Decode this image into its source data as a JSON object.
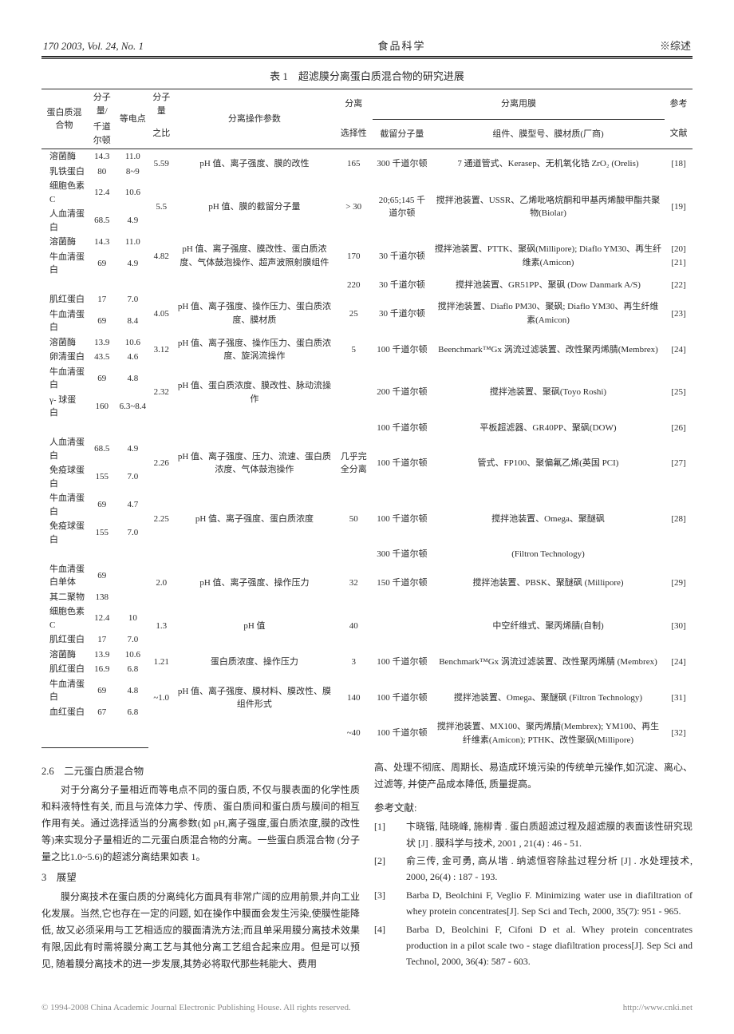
{
  "header": {
    "left": "170  2003, Vol. 24, No. 1",
    "center": "食品科学",
    "right": "※综述"
  },
  "table": {
    "caption": "表 1　超滤膜分离蛋白质混合物的研究进展",
    "head": {
      "c1": "蛋白质混合物",
      "c2_t": "分子量/",
      "c2_b": "千道尔顿",
      "c3": "等电点",
      "c4_t": "分子量",
      "c4_b": "之比",
      "c5": "分离操作参数",
      "c6_t": "分离",
      "c6_b": "选择性",
      "c7_group": "分离用膜",
      "c7a": "截留分子量",
      "c7b": "组件、膜型号、膜材质(厂商)",
      "c8_t": "参考",
      "c8_b": "文献"
    },
    "rows": [
      {
        "n": [
          "溶菌酶",
          "乳铁蛋白"
        ],
        "mw": [
          "14.3",
          "80"
        ],
        "pi": [
          "11.0",
          "8~9"
        ],
        "r": "5.59",
        "p": "pH 值、离子强度、膜的改性",
        "s": "165",
        "cut": "300 千道尔顿",
        "m": "7 通道管式、Kerasep、无机氧化锆 ZrO₂ (Orelis)",
        "ref": "[18]"
      },
      {
        "n": [
          "细胞色素 C",
          "人血清蛋白"
        ],
        "mw": [
          "12.4",
          "68.5"
        ],
        "pi": [
          "10.6",
          "4.9"
        ],
        "r": "5.5",
        "p": "pH 值、膜的截留分子量",
        "s": "> 30",
        "cut": "20;65;145 千道尔顿",
        "m": "搅拌池装置、USSR、乙烯吡咯烷酮和甲基丙烯酸甲酯共聚物(Biolar)",
        "ref": "[19]"
      },
      {
        "n": [
          "溶菌酶",
          "牛血清蛋白"
        ],
        "mw": [
          "14.3",
          "69"
        ],
        "pi": [
          "11.0",
          "4.9"
        ],
        "r": "4.82",
        "p": "pH 值、离子强度、膜改性、蛋白质浓度、气体鼓泡操作、超声波照射膜组件",
        "s": "170",
        "cut": "30 千道尔顿",
        "m": "搅拌池装置、PTTK、聚砜(Millipore); Diaflo YM30、再生纤维素(Amicon)",
        "ref": "[20] [21]"
      },
      {
        "n": [
          "",
          ""
        ],
        "mw": [
          "",
          ""
        ],
        "pi": [
          "",
          ""
        ],
        "r": "",
        "p": "",
        "s": "220",
        "cut": "30 千道尔顿",
        "m": "搅拌池装置、GR51PP、聚砜 (Dow Danmark A/S)",
        "ref": "[22]"
      },
      {
        "n": [
          "肌红蛋白",
          "牛血清蛋白"
        ],
        "mw": [
          "17",
          "69"
        ],
        "pi": [
          "7.0",
          "8.4"
        ],
        "r": "4.05",
        "p": "pH 值、离子强度、操作压力、蛋白质浓度、膜材质",
        "s": "25",
        "cut": "30 千道尔顿",
        "m": "搅拌池装置、Diaflo PM30、聚砜; Diaflo YM30、再生纤维素(Amicon)",
        "ref": "[23]"
      },
      {
        "n": [
          "溶菌酶",
          "卵清蛋白"
        ],
        "mw": [
          "13.9",
          "43.5"
        ],
        "pi": [
          "10.6",
          "4.6"
        ],
        "r": "3.12",
        "p": "pH 值、离子强度、操作压力、蛋白质浓度、旋涡流操作",
        "s": "5",
        "cut": "100 千道尔顿",
        "m": "Beenchmark™Gx 涡流过滤装置、改性聚丙烯腈(Membrex)",
        "ref": "[24]"
      },
      {
        "n": [
          "牛血清蛋白",
          "γ- 球蛋白"
        ],
        "mw": [
          "69",
          "160"
        ],
        "pi": [
          "4.8",
          "6.3~8.4"
        ],
        "r": "2.32",
        "p": "pH 值、蛋白质浓度、膜改性、脉动流操作",
        "s": "",
        "cut": "200 千道尔顿",
        "m": "搅拌池装置、聚砜(Toyo Roshi)",
        "ref": "[25]"
      },
      {
        "n": [
          "",
          ""
        ],
        "mw": [
          "",
          ""
        ],
        "pi": [
          "",
          ""
        ],
        "r": "",
        "p": "",
        "s": "",
        "cut": "100 千道尔顿",
        "m": "平板超滤器、GR40PP、聚砜(DOW)",
        "ref": "[26]"
      },
      {
        "n": [
          "人血清蛋白",
          "免疫球蛋白"
        ],
        "mw": [
          "68.5",
          "155"
        ],
        "pi": [
          "4.9",
          "7.0"
        ],
        "r": "2.26",
        "p": "pH 值、离子强度、压力、流速、蛋白质浓度、气体鼓泡操作",
        "s": "几乎完全分离",
        "cut": "100 千道尔顿",
        "m": "管式、FP100、聚偏氟乙烯(英国 PCI)",
        "ref": "[27]"
      },
      {
        "n": [
          "牛血清蛋白",
          "免疫球蛋白"
        ],
        "mw": [
          "69",
          "155"
        ],
        "pi": [
          "4.7",
          "7.0"
        ],
        "r": "2.25",
        "p": "pH 值、离子强度、蛋白质浓度",
        "s": "50",
        "cut": "100 千道尔顿",
        "m": "搅拌池装置、Omega、聚醚砜",
        "ref": "[28]"
      },
      {
        "n": [
          "",
          ""
        ],
        "mw": [
          "",
          ""
        ],
        "pi": [
          "",
          ""
        ],
        "r": "",
        "p": "",
        "s": "",
        "cut": "300 千道尔顿",
        "m": "(Filtron Technology)",
        "ref": ""
      },
      {
        "n": [
          "牛血清蛋白单体",
          "其二聚物"
        ],
        "mw": [
          "69",
          "138"
        ],
        "pi": [
          "",
          ""
        ],
        "r": "2.0",
        "p": "pH 值、离子强度、操作压力",
        "s": "32",
        "cut": "150 千道尔顿",
        "m": "搅拌池装置、PBSK、聚醚砜 (Millipore)",
        "ref": "[29]"
      },
      {
        "n": [
          "细胞色素 C",
          "肌红蛋白"
        ],
        "mw": [
          "12.4",
          "17"
        ],
        "pi": [
          "10",
          "7.0"
        ],
        "r": "1.3",
        "p": "pH 值",
        "s": "40",
        "cut": "",
        "m": "中空纤维式、聚丙烯腈(自制)",
        "ref": "[30]"
      },
      {
        "n": [
          "溶菌酶",
          "肌红蛋白"
        ],
        "mw": [
          "13.9",
          "16.9"
        ],
        "pi": [
          "10.6",
          "6.8"
        ],
        "r": "1.21",
        "p": "蛋白质浓度、操作压力",
        "s": "3",
        "cut": "100 千道尔顿",
        "m": "Benchmark™Gx 涡流过滤装置、改性聚丙烯腈 (Membrex)",
        "ref": "[24]"
      },
      {
        "n": [
          "牛血清蛋白",
          "血红蛋白"
        ],
        "mw": [
          "69",
          "67"
        ],
        "pi": [
          "4.8",
          "6.8"
        ],
        "r": "~1.0",
        "p": "pH 值、离子强度、膜材料、膜改性、膜组件形式",
        "s": "140",
        "cut": "100 千道尔顿",
        "m": "搅拌池装置、Omega、聚醚砜 (Filtron Technology)",
        "ref": "[31]"
      },
      {
        "n": [
          "",
          ""
        ],
        "mw": [
          "",
          ""
        ],
        "pi": [
          "",
          ""
        ],
        "r": "",
        "p": "",
        "s": "~40",
        "cut": "100 千道尔顿",
        "m": "搅拌池装置、MX100、聚丙烯腈(Membrex); YM100、再生纤维素(Amicon); PTHK、改性聚砜(Millipore)",
        "ref": "[32]"
      }
    ]
  },
  "sections": {
    "s26_title": "2.6　二元蛋白质混合物",
    "s26_p1": "对于分离分子量相近而等电点不同的蛋白质, 不仅与膜表面的化学性质和料液特性有关, 而且与流体力学、传质、蛋白质间和蛋白质与膜间的相互作用有关。通过选择适当的分离参数(如 pH,离子强度,蛋白质浓度,膜的改性等)来实现分子量相近的二元蛋白质混合物的分离。一些蛋白质混合物 (分子量之比1.0~5.6)的超滤分离结果如表 1。",
    "s3_title": "3　展望",
    "s3_p1": "膜分离技术在蛋白质的分离纯化方面具有非常广阔的应用前景,并向工业化发展。当然,它也存在一定的问题, 如在操作中膜面会发生污染,使膜性能降低, 故又必须采用与工艺相适应的膜面清洗方法;而且单采用膜分离技术效果有限,因此有时需将膜分离工艺与其他分离工艺组合起来应用。但是可以预见, 随着膜分离技术的进一步发展,其势必将取代那些耗能大、费用",
    "r_p1_cont": "高、处理不彻底、周期长、易造成环境污染的传统单元操作,如沉淀、离心、过滤等, 并使产品成本降低, 质量提高。",
    "refs_title": "参考文献:"
  },
  "refs": [
    {
      "n": "[1]",
      "t": "卞晓锴, 陆晓峰, 施柳青 . 蛋白质超滤过程及超滤膜的表面该性研究现状 [J] . 膜科学与技术, 2001 , 21(4) : 46 - 51."
    },
    {
      "n": "[2]",
      "t": "俞三传, 金可勇, 高从堦 . 纳滤恒容除盐过程分析 [J] . 水处理技术, 2000, 26(4) : 187 - 193."
    },
    {
      "n": "[3]",
      "t": "Barba D, Beolchini F, Veglio F. Minimizing water use in diafiltration of whey protein concentrates[J]. Sep Sci and Tech, 2000, 35(7): 951 - 965."
    },
    {
      "n": "[4]",
      "t": "Barba D, Beolchini F, Cifoni D et al. Whey protein concentrates production  in a pilot scale two - stage diafiltration process[J]. Sep Sci and Technol, 2000, 36(4): 587 - 603."
    }
  ],
  "footer": {
    "left": "© 1994-2008 China Academic Journal Electronic Publishing House. All rights reserved.",
    "right": "http://www.cnki.net"
  }
}
